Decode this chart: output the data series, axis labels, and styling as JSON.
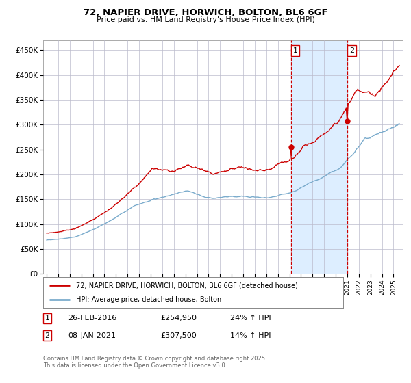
{
  "title": "72, NAPIER DRIVE, HORWICH, BOLTON, BL6 6GF",
  "subtitle": "Price paid vs. HM Land Registry's House Price Index (HPI)",
  "ylim": [
    0,
    470000
  ],
  "yticks": [
    0,
    50000,
    100000,
    150000,
    200000,
    250000,
    300000,
    350000,
    400000,
    450000
  ],
  "ytick_labels": [
    "£0",
    "£50K",
    "£100K",
    "£150K",
    "£200K",
    "£250K",
    "£300K",
    "£350K",
    "£400K",
    "£450K"
  ],
  "xlim_start": 1994.7,
  "xlim_end": 2025.8,
  "sale1_date_x": 2016.15,
  "sale1_price": 254950,
  "sale1_label": "1",
  "sale1_date_str": "26-FEB-2016",
  "sale1_price_str": "£254,950",
  "sale1_hpi_str": "24% ↑ HPI",
  "sale2_date_x": 2021.02,
  "sale2_price": 307500,
  "sale2_label": "2",
  "sale2_date_str": "08-JAN-2021",
  "sale2_price_str": "£307,500",
  "sale2_hpi_str": "14% ↑ HPI",
  "red_line_color": "#cc0000",
  "blue_line_color": "#7aabcc",
  "vline_color": "#cc0000",
  "shade_color": "#ddeeff",
  "bg_color": "#ffffff",
  "grid_color": "#bbbbcc",
  "legend1_label": "72, NAPIER DRIVE, HORWICH, BOLTON, BL6 6GF (detached house)",
  "legend2_label": "HPI: Average price, detached house, Bolton",
  "footer": "Contains HM Land Registry data © Crown copyright and database right 2025.\nThis data is licensed under the Open Government Licence v3.0."
}
